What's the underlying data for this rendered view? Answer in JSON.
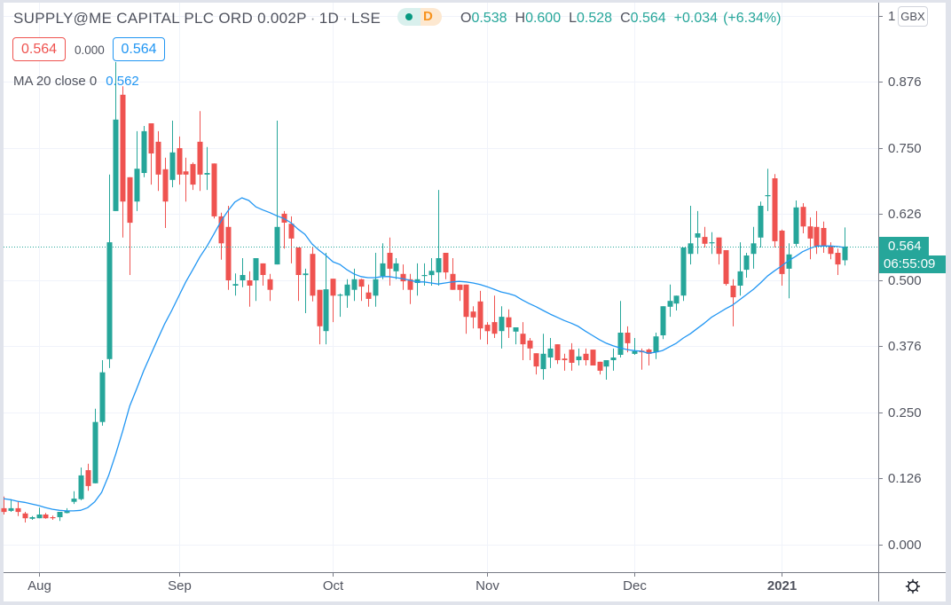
{
  "header": {
    "symbol": "SUPPLY@ME CAPITAL PLC ORD 0.002P",
    "separator": "·",
    "interval": "1D",
    "exchange": "LSE",
    "status_badge": {
      "interval_letter": "D",
      "status_icon": "market-status-dot-icon"
    },
    "ohlc": {
      "open_label": "O",
      "open": "0.538",
      "high_label": "H",
      "high": "0.600",
      "low_label": "L",
      "low": "0.528",
      "close_label": "C",
      "close": "0.564",
      "change": "+0.034",
      "change_percent": "(+6.34%)"
    },
    "sell_price": "0.564",
    "spread": "0.000",
    "buy_price": "0.564"
  },
  "indicators": [
    {
      "label": "MA 20 close 0",
      "value": "0.562"
    }
  ],
  "price_axis": {
    "currency": "GBX",
    "ticks": [
      {
        "label": "1",
        "value": 1.0
      },
      {
        "label": "0.876",
        "value": 0.876
      },
      {
        "label": "0.750",
        "value": 0.75
      },
      {
        "label": "0.626",
        "value": 0.626
      },
      {
        "label": "0.500",
        "value": 0.5
      },
      {
        "label": "0.376",
        "value": 0.376
      },
      {
        "label": "0.250",
        "value": 0.25
      },
      {
        "label": "0.126",
        "value": 0.126
      },
      {
        "label": "0.000",
        "value": 0.0
      }
    ],
    "last_price_label": "0.564",
    "bar_countdown": "06:55:09"
  },
  "time_axis": {
    "ticks": [
      {
        "label": "Aug",
        "bar": 5,
        "bold": false
      },
      {
        "label": "Sep",
        "bar": 25,
        "bold": false
      },
      {
        "label": "Oct",
        "bar": 47,
        "bold": false
      },
      {
        "label": "Nov",
        "bar": 69,
        "bold": false
      },
      {
        "label": "Dec",
        "bar": 90,
        "bold": false
      },
      {
        "label": "2021",
        "bar": 111,
        "bold": true
      }
    ]
  },
  "icons": {
    "settings": "gear-icon",
    "status": "market-status-dot-icon"
  },
  "colors": {
    "up": "#26a69a",
    "down": "#ef5350",
    "ma": "#2196f3",
    "grid": "#f0f3fa",
    "axis": "#787b86",
    "text": "#50535e",
    "badge_orange": "#f7931e"
  },
  "chart_data": {
    "type": "candlestick",
    "title": "SUPPLY@ME CAPITAL PLC ORD 0.002P · 1D · LSE",
    "xlabel": "",
    "ylabel": "GBX",
    "x_tick_labels": [
      "Aug",
      "Sep",
      "Oct",
      "Nov",
      "Dec",
      "2021"
    ],
    "y_tick_labels": [
      "0.000",
      "0.126",
      "0.250",
      "0.376",
      "0.500",
      "0.626",
      "0.750",
      "0.876",
      "1"
    ],
    "ylim": [
      -0.052,
      1.025
    ],
    "grid": true,
    "legend": [
      "MA 20 close 0"
    ],
    "ohlc_fields": [
      "open",
      "high",
      "low",
      "close"
    ],
    "ohlc": [
      [
        0.069,
        0.091,
        0.057,
        0.062
      ],
      [
        0.064,
        0.086,
        0.062,
        0.069
      ],
      [
        0.069,
        0.082,
        0.054,
        0.062
      ],
      [
        0.059,
        0.062,
        0.042,
        0.05
      ],
      [
        0.049,
        0.054,
        0.047,
        0.052
      ],
      [
        0.05,
        0.07,
        0.05,
        0.057
      ],
      [
        0.057,
        0.06,
        0.049,
        0.05
      ],
      [
        0.052,
        0.055,
        0.047,
        0.05
      ],
      [
        0.052,
        0.062,
        0.045,
        0.062
      ],
      [
        0.06,
        0.069,
        0.059,
        0.064
      ],
      [
        0.081,
        0.101,
        0.077,
        0.087
      ],
      [
        0.086,
        0.146,
        0.084,
        0.131
      ],
      [
        0.141,
        0.153,
        0.102,
        0.111
      ],
      [
        0.116,
        0.257,
        0.116,
        0.232
      ],
      [
        0.232,
        0.349,
        0.225,
        0.326
      ],
      [
        0.351,
        0.7,
        0.334,
        0.572
      ],
      [
        0.631,
        0.913,
        0.631,
        0.804
      ],
      [
        0.851,
        0.867,
        0.581,
        0.649
      ],
      [
        0.695,
        0.695,
        0.51,
        0.609
      ],
      [
        0.649,
        0.782,
        0.631,
        0.711
      ],
      [
        0.703,
        0.792,
        0.695,
        0.782
      ],
      [
        0.797,
        0.797,
        0.681,
        0.74
      ],
      [
        0.762,
        0.782,
        0.669,
        0.7
      ],
      [
        0.71,
        0.732,
        0.599,
        0.649
      ],
      [
        0.69,
        0.802,
        0.676,
        0.742
      ],
      [
        0.75,
        0.772,
        0.681,
        0.7
      ],
      [
        0.706,
        0.732,
        0.649,
        0.7
      ],
      [
        0.72,
        0.723,
        0.671,
        0.681
      ],
      [
        0.762,
        0.82,
        0.669,
        0.7
      ],
      [
        0.7,
        0.752,
        0.671,
        0.703
      ],
      [
        0.721,
        0.721,
        0.617,
        0.621
      ],
      [
        0.621,
        0.628,
        0.539,
        0.57
      ],
      [
        0.601,
        0.641,
        0.482,
        0.5
      ],
      [
        0.49,
        0.513,
        0.471,
        0.493
      ],
      [
        0.5,
        0.542,
        0.487,
        0.51
      ],
      [
        0.5,
        0.517,
        0.45,
        0.49
      ],
      [
        0.5,
        0.542,
        0.461,
        0.542
      ],
      [
        0.532,
        0.532,
        0.49,
        0.51
      ],
      [
        0.502,
        0.512,
        0.461,
        0.482
      ],
      [
        0.53,
        0.802,
        0.53,
        0.601
      ],
      [
        0.626,
        0.631,
        0.56,
        0.609
      ],
      [
        0.607,
        0.621,
        0.532,
        0.579
      ],
      [
        0.562,
        0.562,
        0.461,
        0.51
      ],
      [
        0.51,
        0.522,
        0.438,
        0.513
      ],
      [
        0.55,
        0.562,
        0.46,
        0.471
      ],
      [
        0.482,
        0.482,
        0.379,
        0.413
      ],
      [
        0.404,
        0.552,
        0.379,
        0.483
      ],
      [
        0.503,
        0.503,
        0.421,
        0.471
      ],
      [
        0.471,
        0.475,
        0.431,
        0.473
      ],
      [
        0.471,
        0.502,
        0.448,
        0.492
      ],
      [
        0.482,
        0.522,
        0.461,
        0.502
      ],
      [
        0.502,
        0.503,
        0.461,
        0.488
      ],
      [
        0.477,
        0.492,
        0.45,
        0.465
      ],
      [
        0.471,
        0.552,
        0.45,
        0.502
      ],
      [
        0.508,
        0.57,
        0.502,
        0.532
      ],
      [
        0.552,
        0.581,
        0.49,
        0.522
      ],
      [
        0.517,
        0.542,
        0.502,
        0.532
      ],
      [
        0.512,
        0.53,
        0.482,
        0.498
      ],
      [
        0.502,
        0.512,
        0.455,
        0.482
      ],
      [
        0.495,
        0.532,
        0.471,
        0.502
      ],
      [
        0.508,
        0.532,
        0.49,
        0.51
      ],
      [
        0.51,
        0.542,
        0.49,
        0.518
      ],
      [
        0.515,
        0.671,
        0.49,
        0.542
      ],
      [
        0.552,
        0.552,
        0.502,
        0.515
      ],
      [
        0.512,
        0.542,
        0.482,
        0.482
      ],
      [
        0.492,
        0.492,
        0.461,
        0.482
      ],
      [
        0.492,
        0.492,
        0.399,
        0.431
      ],
      [
        0.441,
        0.451,
        0.409,
        0.43
      ],
      [
        0.46,
        0.48,
        0.388,
        0.409
      ],
      [
        0.416,
        0.421,
        0.379,
        0.404
      ],
      [
        0.421,
        0.471,
        0.391,
        0.399
      ],
      [
        0.404,
        0.451,
        0.371,
        0.431
      ],
      [
        0.43,
        0.445,
        0.391,
        0.411
      ],
      [
        0.403,
        0.411,
        0.379,
        0.411
      ],
      [
        0.399,
        0.421,
        0.349,
        0.379
      ],
      [
        0.386,
        0.391,
        0.349,
        0.371
      ],
      [
        0.362,
        0.362,
        0.322,
        0.337
      ],
      [
        0.332,
        0.399,
        0.312,
        0.361
      ],
      [
        0.354,
        0.391,
        0.334,
        0.371
      ],
      [
        0.379,
        0.379,
        0.342,
        0.349
      ],
      [
        0.352,
        0.361,
        0.329,
        0.349
      ],
      [
        0.369,
        0.381,
        0.329,
        0.344
      ],
      [
        0.349,
        0.371,
        0.339,
        0.356
      ],
      [
        0.361,
        0.371,
        0.339,
        0.349
      ],
      [
        0.369,
        0.369,
        0.339,
        0.339
      ],
      [
        0.346,
        0.346,
        0.322,
        0.329
      ],
      [
        0.337,
        0.349,
        0.312,
        0.349
      ],
      [
        0.349,
        0.371,
        0.329,
        0.354
      ],
      [
        0.359,
        0.461,
        0.354,
        0.401
      ],
      [
        0.401,
        0.413,
        0.364,
        0.381
      ],
      [
        0.361,
        0.391,
        0.359,
        0.366
      ],
      [
        0.367,
        0.371,
        0.331,
        0.364
      ],
      [
        0.369,
        0.371,
        0.339,
        0.361
      ],
      [
        0.364,
        0.401,
        0.351,
        0.394
      ],
      [
        0.396,
        0.451,
        0.389,
        0.451
      ],
      [
        0.45,
        0.492,
        0.431,
        0.461
      ],
      [
        0.456,
        0.471,
        0.443,
        0.471
      ],
      [
        0.471,
        0.562,
        0.461,
        0.562
      ],
      [
        0.55,
        0.641,
        0.53,
        0.57
      ],
      [
        0.581,
        0.631,
        0.55,
        0.589
      ],
      [
        0.582,
        0.601,
        0.562,
        0.569
      ],
      [
        0.57,
        0.591,
        0.55,
        0.572
      ],
      [
        0.581,
        0.581,
        0.53,
        0.55
      ],
      [
        0.557,
        0.557,
        0.49,
        0.493
      ],
      [
        0.49,
        0.502,
        0.413,
        0.468
      ],
      [
        0.49,
        0.572,
        0.471,
        0.517
      ],
      [
        0.52,
        0.552,
        0.505,
        0.547
      ],
      [
        0.55,
        0.601,
        0.522,
        0.57
      ],
      [
        0.581,
        0.649,
        0.562,
        0.641
      ],
      [
        0.659,
        0.711,
        0.631,
        0.661
      ],
      [
        0.693,
        0.701,
        0.562,
        0.574
      ],
      [
        0.594,
        0.596,
        0.49,
        0.512
      ],
      [
        0.522,
        0.57,
        0.466,
        0.549
      ],
      [
        0.569,
        0.651,
        0.564,
        0.638
      ],
      [
        0.639,
        0.646,
        0.589,
        0.602
      ],
      [
        0.602,
        0.619,
        0.54,
        0.579
      ],
      [
        0.601,
        0.631,
        0.55,
        0.565
      ],
      [
        0.599,
        0.611,
        0.552,
        0.565
      ],
      [
        0.565,
        0.572,
        0.54,
        0.55
      ],
      [
        0.552,
        0.56,
        0.51,
        0.53
      ],
      [
        0.538,
        0.6,
        0.528,
        0.564
      ]
    ],
    "series": [
      {
        "name": "MA 20 close 0",
        "values": [
          0.087,
          0.085,
          0.082,
          0.08,
          0.077,
          0.074,
          0.07,
          0.067,
          0.065,
          0.064,
          0.064,
          0.065,
          0.07,
          0.081,
          0.099,
          0.131,
          0.171,
          0.215,
          0.262,
          0.295,
          0.329,
          0.359,
          0.389,
          0.418,
          0.443,
          0.47,
          0.497,
          0.52,
          0.544,
          0.564,
          0.587,
          0.611,
          0.631,
          0.648,
          0.656,
          0.651,
          0.639,
          0.633,
          0.628,
          0.622,
          0.617,
          0.609,
          0.597,
          0.587,
          0.569,
          0.557,
          0.547,
          0.535,
          0.53,
          0.52,
          0.512,
          0.507,
          0.505,
          0.505,
          0.507,
          0.507,
          0.505,
          0.503,
          0.5,
          0.497,
          0.497,
          0.495,
          0.493,
          0.495,
          0.497,
          0.498,
          0.497,
          0.495,
          0.492,
          0.488,
          0.483,
          0.478,
          0.475,
          0.471,
          0.463,
          0.456,
          0.45,
          0.443,
          0.436,
          0.43,
          0.424,
          0.419,
          0.413,
          0.404,
          0.396,
          0.388,
          0.381,
          0.376,
          0.372,
          0.369,
          0.367,
          0.366,
          0.362,
          0.364,
          0.367,
          0.374,
          0.381,
          0.391,
          0.399,
          0.409,
          0.419,
          0.43,
          0.438,
          0.446,
          0.453,
          0.463,
          0.473,
          0.483,
          0.495,
          0.508,
          0.518,
          0.527,
          0.537,
          0.545,
          0.554,
          0.56,
          0.565,
          0.565,
          0.565,
          0.564,
          0.562
        ]
      }
    ],
    "last_price": 0.564
  }
}
